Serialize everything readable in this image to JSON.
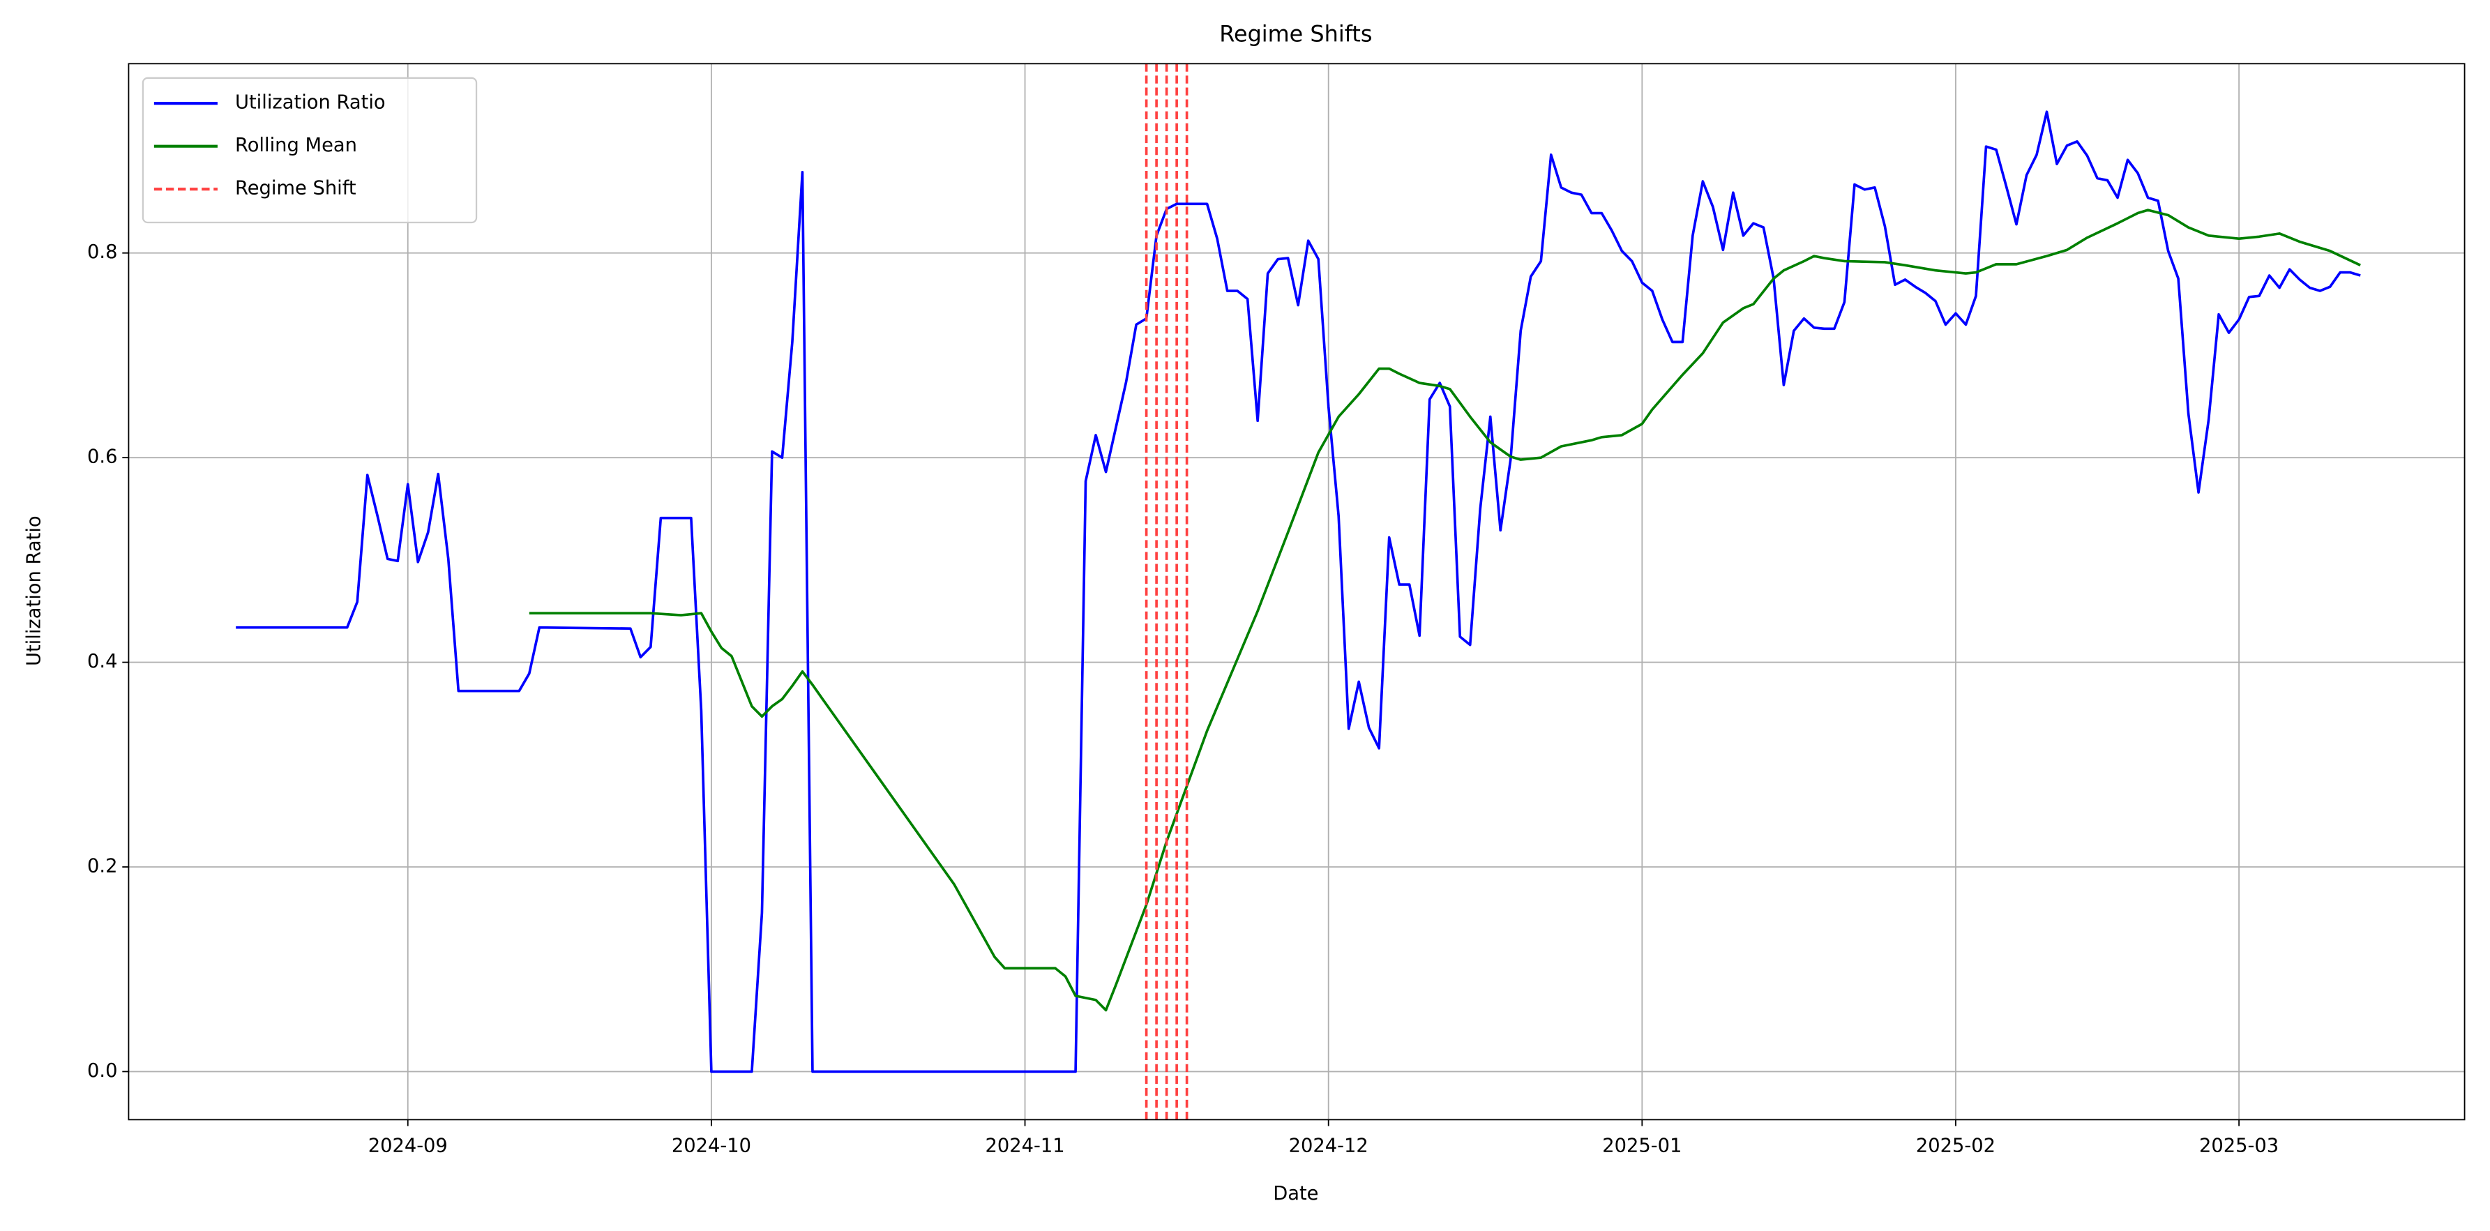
{
  "chart_data": {
    "type": "line",
    "title": "Regime Shifts",
    "x_label": "Date",
    "y_label": "Utilization Ratio",
    "xlim": [
      -27.6,
      203.3
    ],
    "xticks": [
      {
        "value": 0,
        "label": "2024-09"
      },
      {
        "value": 30,
        "label": "2024-10"
      },
      {
        "value": 61,
        "label": "2024-11"
      },
      {
        "value": 91,
        "label": "2024-12"
      },
      {
        "value": 122,
        "label": "2025-01"
      },
      {
        "value": 153,
        "label": "2025-02"
      },
      {
        "value": 181,
        "label": "2025-03"
      }
    ],
    "ylim": [
      -0.047,
      0.985
    ],
    "yticks": [
      {
        "value": 0,
        "label": "0.0"
      },
      0.2,
      0.4,
      0.6,
      0.8
    ],
    "grid": true,
    "legend": "upper left",
    "series": [
      {
        "name": "Utilization Ratio",
        "color": "#0000ff",
        "x": [
          -17,
          -6,
          -5,
          -4,
          -3,
          -2,
          -1,
          0,
          1,
          2,
          3,
          4,
          5,
          11,
          12,
          13,
          22,
          23,
          24,
          25,
          28,
          29,
          30,
          34,
          35,
          36,
          37,
          38,
          39,
          40,
          66,
          67,
          68,
          69,
          71,
          72,
          73,
          74,
          75,
          76,
          79,
          80,
          81,
          82,
          83,
          84,
          85,
          86,
          87,
          88,
          89,
          90,
          91,
          92,
          93,
          94,
          95,
          96,
          97,
          98,
          99,
          100,
          101,
          102,
          103,
          104,
          105,
          106,
          107,
          108,
          109,
          110,
          111,
          112,
          113,
          114,
          115,
          116,
          117,
          118,
          119,
          120,
          121,
          122,
          123,
          124,
          125,
          126,
          127,
          128,
          129,
          130,
          131,
          132,
          133,
          134,
          135,
          136,
          137,
          138,
          139,
          140,
          141,
          142,
          143,
          144,
          145,
          146,
          147,
          148,
          149,
          150,
          151,
          152,
          153,
          154,
          155,
          156,
          157,
          158,
          159,
          160,
          161,
          162,
          163,
          164,
          165,
          166,
          167,
          168,
          169,
          170,
          171,
          172,
          173,
          174,
          175,
          176,
          177,
          178,
          179,
          180,
          181,
          182,
          183,
          184,
          185,
          186,
          187,
          188,
          189,
          190,
          191,
          192,
          193
        ],
        "values": [
          0.434,
          0.434,
          0.459,
          0.583,
          0.543,
          0.501,
          0.499,
          0.574,
          0.498,
          0.527,
          0.584,
          0.501,
          0.372,
          0.372,
          0.389,
          0.434,
          0.433,
          0.405,
          0.415,
          0.541,
          0.541,
          0.353,
          0,
          0,
          0.155,
          0.606,
          0.6,
          0.713,
          0.879,
          0,
          0,
          0.577,
          0.622,
          0.586,
          0.674,
          0.73,
          0.736,
          0.817,
          0.843,
          0.848,
          0.848,
          0.814,
          0.763,
          0.763,
          0.755,
          0.636,
          0.78,
          0.794,
          0.795,
          0.749,
          0.812,
          0.794,
          0.65,
          0.543,
          0.335,
          0.381,
          0.336,
          0.316,
          0.522,
          0.476,
          0.476,
          0.426,
          0.657,
          0.673,
          0.65,
          0.425,
          0.417,
          0.55,
          0.64,
          0.529,
          0.598,
          0.724,
          0.777,
          0.792,
          0.896,
          0.864,
          0.859,
          0.857,
          0.839,
          0.839,
          0.822,
          0.802,
          0.792,
          0.771,
          0.763,
          0.735,
          0.713,
          0.713,
          0.817,
          0.87,
          0.845,
          0.803,
          0.859,
          0.817,
          0.829,
          0.825,
          0.775,
          0.671,
          0.724,
          0.736,
          0.727,
          0.726,
          0.726,
          0.752,
          0.867,
          0.862,
          0.864,
          0.826,
          0.769,
          0.774,
          0.767,
          0.761,
          0.753,
          0.73,
          0.741,
          0.73,
          0.758,
          0.904,
          0.901,
          0.865,
          0.828,
          0.876,
          0.896,
          0.938,
          0.887,
          0.905,
          0.909,
          0.895,
          0.873,
          0.871,
          0.854,
          0.891,
          0.878,
          0.854,
          0.851,
          0.802,
          0.775,
          0.643,
          0.566,
          0.637,
          0.74,
          0.722,
          0.735,
          0.757,
          0.758,
          0.778,
          0.766,
          0.784,
          0.774,
          0.766,
          0.763,
          0.767,
          0.781,
          0.781,
          0.778
        ]
      },
      {
        "name": "Rolling Mean",
        "color": "#008000",
        "x": [
          12,
          22,
          24,
          27,
          29,
          30,
          31,
          32,
          34,
          35,
          36,
          37,
          38,
          39,
          40,
          41,
          54,
          58,
          59,
          64,
          65,
          66,
          68,
          69,
          70,
          73,
          75,
          79,
          84,
          87,
          90,
          92,
          94,
          96,
          97,
          98,
          100,
          102,
          103,
          105,
          107,
          109,
          110,
          112,
          114,
          117,
          118,
          120,
          122,
          123,
          126,
          128,
          130,
          132,
          133,
          135,
          136,
          138,
          139,
          140,
          142,
          146,
          148,
          151,
          154,
          155,
          157,
          159,
          162,
          164,
          166,
          169,
          171,
          172,
          174,
          176,
          178,
          181,
          183,
          185,
          187,
          190,
          193
        ],
        "values": [
          0.448,
          0.448,
          0.448,
          0.446,
          0.448,
          0.43,
          0.414,
          0.406,
          0.357,
          0.347,
          0.357,
          0.364,
          0.377,
          0.391,
          0.378,
          0.364,
          0.183,
          0.112,
          0.101,
          0.101,
          0.093,
          0.074,
          0.07,
          0.06,
          0.085,
          0.163,
          0.225,
          0.333,
          0.45,
          0.527,
          0.605,
          0.64,
          0.662,
          0.687,
          0.687,
          0.682,
          0.673,
          0.67,
          0.667,
          0.64,
          0.615,
          0.601,
          0.598,
          0.6,
          0.611,
          0.617,
          0.62,
          0.622,
          0.633,
          0.647,
          0.681,
          0.702,
          0.732,
          0.746,
          0.75,
          0.775,
          0.783,
          0.792,
          0.797,
          0.795,
          0.792,
          0.791,
          0.788,
          0.783,
          0.78,
          0.781,
          0.789,
          0.789,
          0.797,
          0.803,
          0.815,
          0.829,
          0.839,
          0.842,
          0.837,
          0.825,
          0.817,
          0.814,
          0.816,
          0.819,
          0.811,
          0.802,
          0.788
        ]
      }
    ],
    "vlines": {
      "name": "Regime Shift",
      "color": "#ff4040",
      "style": "dashed",
      "x": [
        73,
        74,
        75,
        76,
        77
      ]
    }
  }
}
